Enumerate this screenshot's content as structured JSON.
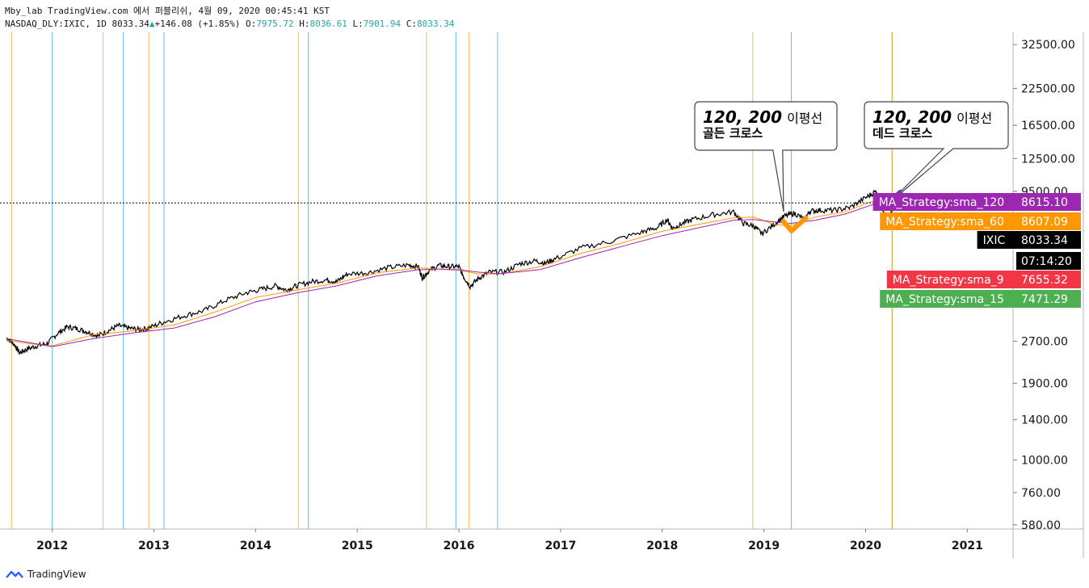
{
  "header": {
    "line1": "Mby_lab TradingView.com 에서 퍼블리쉬, 4월 09, 2020 00:45:41 KST",
    "symbol": "NASDAQ_DLY:IXIC, 1D",
    "last": "8033.34",
    "change": "+146.08 (+1.85%)",
    "o_label": "O:",
    "o": "7975.72",
    "h_label": "H:",
    "h": "8036.61",
    "l_label": "L:",
    "l": "7901.94",
    "c_label": "C:",
    "c": "8033.34"
  },
  "footer": {
    "brand": "TradingView"
  },
  "callouts": [
    {
      "line1": "120, 200",
      "suffix": "이평선",
      "line2": "골든 크로스"
    },
    {
      "line1": "120, 200",
      "suffix": "이평선",
      "line2": "데드 크로스"
    }
  ],
  "price_labels": [
    {
      "name": "MA_Strategy:sma_120",
      "value": "8615.10",
      "color": "#9c27b0"
    },
    {
      "name": "MA_Strategy:sma_60",
      "value": "8607.09",
      "color": "#ff9800"
    },
    {
      "name": "IXIC",
      "value": "8033.34",
      "color": "#000000"
    },
    {
      "name": "",
      "value": "07:14:20",
      "color": "#000000"
    },
    {
      "name": "MA_Strategy:sma_9",
      "value": "7655.32",
      "color": "#f23645"
    },
    {
      "name": "MA_Strategy:sma_15",
      "value": "7471.29",
      "color": "#4caf50"
    }
  ],
  "chart_data": {
    "type": "line",
    "title": "",
    "yscale": "log",
    "y_ticks": [
      "32500.00",
      "22500.00",
      "16500.00",
      "12500.00",
      "9500.00",
      "2700.00",
      "1900.00",
      "1400.00",
      "1000.00",
      "760.00",
      "580.00"
    ],
    "y_tick_values": [
      32500,
      22500,
      16500,
      12500,
      9500,
      2700,
      1900,
      1400,
      1000,
      760,
      580
    ],
    "x_ticks": [
      "2012",
      "2013",
      "2014",
      "2015",
      "2016",
      "2017",
      "2018",
      "2019",
      "2020",
      "2021"
    ],
    "x_tick_values": [
      2012,
      2013,
      2014,
      2015,
      2016,
      2017,
      2018,
      2019,
      2020,
      2021
    ],
    "ylim": [
      560,
      36000
    ],
    "xlim": [
      2011.55,
      2021.45
    ],
    "series": [
      {
        "name": "IXIC",
        "color": "#000000",
        "x": [
          2011.55,
          2011.62,
          2011.68,
          2011.75,
          2011.85,
          2011.95,
          2012.05,
          2012.15,
          2012.25,
          2012.35,
          2012.45,
          2012.55,
          2012.65,
          2012.75,
          2012.85,
          2012.95,
          2013.1,
          2013.3,
          2013.5,
          2013.7,
          2013.9,
          2014.05,
          2014.2,
          2014.3,
          2014.4,
          2014.55,
          2014.7,
          2014.8,
          2014.9,
          2015.1,
          2015.3,
          2015.5,
          2015.6,
          2015.64,
          2015.7,
          2015.8,
          2015.9,
          2016.0,
          2016.05,
          2016.11,
          2016.2,
          2016.3,
          2016.45,
          2016.6,
          2016.75,
          2016.85,
          2016.95,
          2017.2,
          2017.5,
          2017.8,
          2017.95,
          2018.05,
          2018.1,
          2018.18,
          2018.3,
          2018.5,
          2018.7,
          2018.8,
          2018.9,
          2018.98,
          2019.1,
          2019.2,
          2019.3,
          2019.4,
          2019.45,
          2019.55,
          2019.7,
          2019.85,
          2020.0,
          2020.1,
          2020.12,
          2020.18,
          2020.21,
          2020.23,
          2020.26
        ],
        "y": [
          2780,
          2650,
          2450,
          2530,
          2600,
          2650,
          2880,
          3050,
          3000,
          2920,
          2830,
          2950,
          3080,
          3020,
          2980,
          3020,
          3180,
          3350,
          3500,
          3800,
          4050,
          4170,
          4300,
          4150,
          4300,
          4450,
          4520,
          4450,
          4750,
          4800,
          5000,
          5120,
          5050,
          4600,
          4850,
          5100,
          5050,
          5050,
          4620,
          4280,
          4600,
          4820,
          4830,
          5180,
          5300,
          5200,
          5400,
          5900,
          6250,
          6750,
          7000,
          7500,
          6950,
          7200,
          7500,
          7800,
          8000,
          7250,
          7100,
          6650,
          7200,
          7700,
          7900,
          7500,
          8050,
          8100,
          8100,
          8300,
          9000,
          9500,
          8950,
          7800,
          7100,
          7600,
          8033
        ]
      },
      {
        "name": "sma_60",
        "color": "#ff9800",
        "x": [
          2011.55,
          2011.8,
          2012.0,
          2012.4,
          2012.8,
          2013.2,
          2013.6,
          2014.0,
          2014.4,
          2014.8,
          2015.2,
          2015.6,
          2015.8,
          2016.0,
          2016.2,
          2016.4,
          2016.8,
          2017.2,
          2017.6,
          2018.0,
          2018.4,
          2018.7,
          2018.9,
          2019.1,
          2019.25,
          2019.5,
          2019.8,
          2020.05,
          2020.2,
          2020.26
        ],
        "y": [
          2720,
          2640,
          2600,
          2850,
          2950,
          3100,
          3450,
          3900,
          4150,
          4400,
          4800,
          5000,
          4950,
          4900,
          4750,
          4750,
          5050,
          5650,
          6150,
          6800,
          7250,
          7600,
          7650,
          7200,
          7100,
          7650,
          8000,
          8700,
          8950,
          8607
        ]
      },
      {
        "name": "sma_120",
        "color": "#9c27b0",
        "x": [
          2011.55,
          2011.8,
          2012.0,
          2012.4,
          2012.8,
          2013.2,
          2013.6,
          2014.0,
          2014.4,
          2014.8,
          2015.2,
          2015.6,
          2015.8,
          2016.0,
          2016.2,
          2016.4,
          2016.8,
          2017.2,
          2017.6,
          2018.0,
          2018.4,
          2018.7,
          2018.9,
          2019.1,
          2019.25,
          2019.5,
          2019.8,
          2020.05,
          2020.2,
          2020.26
        ],
        "y": [
          2760,
          2660,
          2580,
          2760,
          2900,
          3020,
          3320,
          3760,
          4050,
          4300,
          4680,
          4920,
          4950,
          4920,
          4820,
          4760,
          4930,
          5450,
          5980,
          6550,
          7050,
          7450,
          7500,
          7350,
          7250,
          7450,
          7850,
          8450,
          8700,
          8615
        ]
      }
    ],
    "verticals": [
      {
        "x": 2011.6,
        "color": "#ffb74d"
      },
      {
        "x": 2012.0,
        "color": "#64b5f6"
      },
      {
        "x": 2012.5,
        "color": "#ffb74d"
      },
      {
        "x": 2012.7,
        "color": "#64b5f6"
      },
      {
        "x": 2012.95,
        "color": "#ffb74d"
      },
      {
        "x": 2013.1,
        "color": "#64b5f6"
      },
      {
        "x": 2014.42,
        "color": "#ffb74d"
      },
      {
        "x": 2014.52,
        "color": "#64b5f6"
      },
      {
        "x": 2015.68,
        "color": "#ffb74d"
      },
      {
        "x": 2015.97,
        "color": "#64b5f6"
      },
      {
        "x": 2016.1,
        "color": "#ffb74d"
      },
      {
        "x": 2016.38,
        "color": "#64b5f6"
      },
      {
        "x": 2018.89,
        "color": "#ffb74d"
      },
      {
        "x": 2019.27,
        "color": "#64b5f6"
      },
      {
        "x": 2020.26,
        "color": "#d89614"
      }
    ],
    "crossover_marks": [
      {
        "name": "golden-cross",
        "x": 2019.27,
        "y": 7000,
        "color": "#ff9800"
      },
      {
        "name": "dead-cross",
        "x": 2020.2,
        "y": 8700,
        "color": "#673ab7"
      }
    ]
  }
}
